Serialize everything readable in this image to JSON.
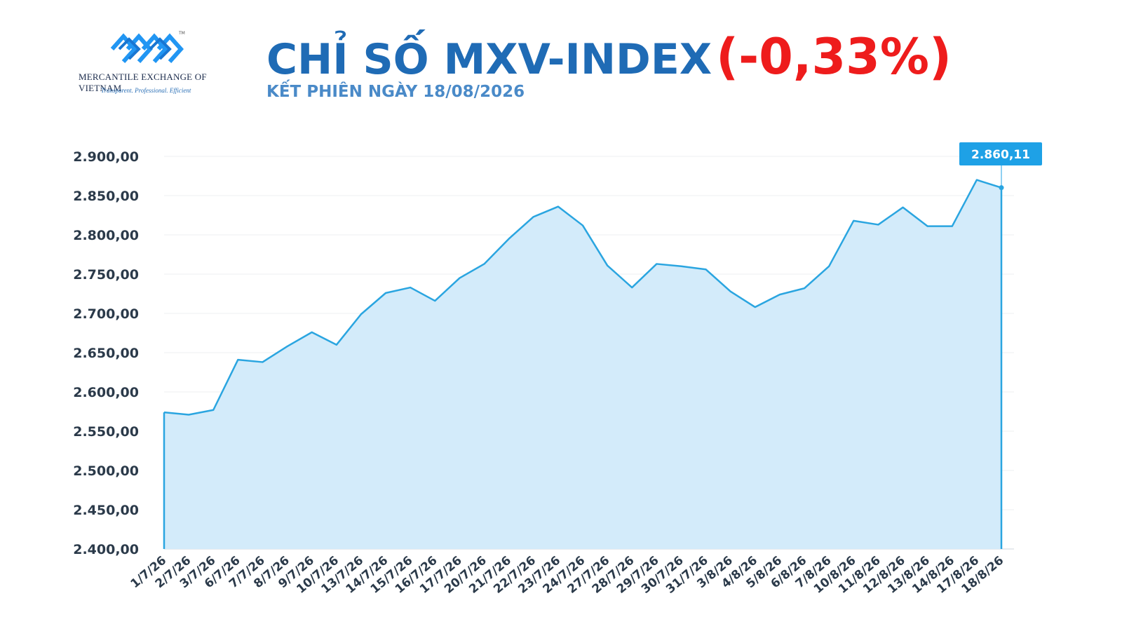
{
  "logo": {
    "name": "MERCANTILE EXCHANGE OF VIETNAM",
    "tagline": "Transparent. Professional. Efficient",
    "trademark": "TM"
  },
  "header": {
    "title": "CHỈ SỐ MXV-INDEX",
    "change": "(-0,33%)",
    "subtitle": "KẾT PHIÊN NGÀY 18/08/2026"
  },
  "colors": {
    "line": "#2aa5e0",
    "area": "#d3ebfa",
    "title": "#1f6bb5",
    "change": "#ee1c1c",
    "callout": "#1ea1e6"
  },
  "chart_data": {
    "type": "area",
    "title": "",
    "xlabel": "",
    "ylabel": "",
    "grid": true,
    "ylim": [
      2400,
      2900
    ],
    "yticks": [
      2400,
      2450,
      2500,
      2550,
      2600,
      2650,
      2700,
      2750,
      2800,
      2850,
      2900
    ],
    "ytick_labels": [
      "2.400,00",
      "2.450,00",
      "2.500,00",
      "2.550,00",
      "2.600,00",
      "2.650,00",
      "2.700,00",
      "2.750,00",
      "2.800,00",
      "2.850,00",
      "2.900,00"
    ],
    "categories": [
      "1/7/26",
      "2/7/26",
      "3/7/26",
      "6/7/26",
      "7/7/26",
      "8/7/26",
      "9/7/26",
      "10/7/26",
      "13/7/26",
      "14/7/26",
      "15/7/26",
      "16/7/26",
      "17/7/26",
      "20/7/26",
      "21/7/26",
      "22/7/26",
      "23/7/26",
      "24/7/26",
      "27/7/26",
      "28/7/26",
      "29/7/26",
      "30/7/26",
      "31/7/26",
      "3/8/26",
      "4/8/26",
      "5/8/26",
      "6/8/26",
      "7/8/26",
      "10/8/26",
      "11/8/26",
      "12/8/26",
      "13/8/26",
      "14/8/26",
      "17/8/26",
      "18/8/26"
    ],
    "values": [
      2574,
      2571,
      2577,
      2641,
      2638,
      2658,
      2676,
      2660,
      2699,
      2726,
      2733,
      2716,
      2745,
      2763,
      2795,
      2823,
      2836,
      2812,
      2761,
      2733,
      2763,
      2760,
      2756,
      2728,
      2708,
      2724,
      2732,
      2760,
      2818,
      2813,
      2835,
      2811,
      2811,
      2870,
      2860.11
    ],
    "last_value_label": "2.860,11"
  }
}
